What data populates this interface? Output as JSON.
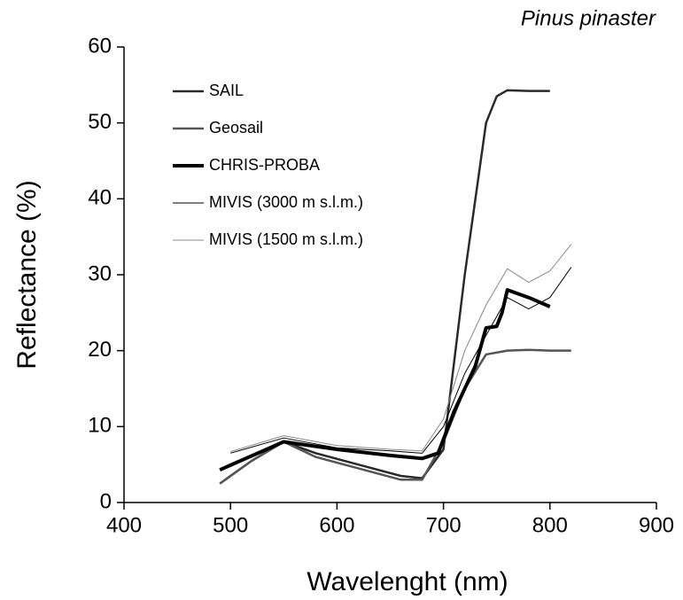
{
  "chart_data": {
    "type": "line",
    "title": "Pinus pinaster",
    "x_label": "Wavelenght (nm)",
    "y_label": "Reflectance (%)",
    "xlim": [
      400,
      900
    ],
    "xticks": [
      400,
      500,
      600,
      700,
      800,
      900
    ],
    "ylim": [
      0,
      60
    ],
    "yticks": [
      0,
      10,
      20,
      30,
      40,
      50,
      60
    ],
    "grid": false,
    "series": [
      {
        "name": "SAIL",
        "color": "#2a2a2a",
        "width": 2.5,
        "x": [
          490,
          520,
          550,
          580,
          620,
          660,
          680,
          700,
          720,
          740,
          750,
          760,
          780,
          800
        ],
        "values": [
          2.5,
          5.5,
          8,
          6.5,
          5,
          3.5,
          3.2,
          7,
          30,
          50,
          53.5,
          54.3,
          54.2,
          54.2
        ]
      },
      {
        "name": "Geosail",
        "color": "#555555",
        "width": 2.5,
        "x": [
          490,
          520,
          550,
          580,
          620,
          660,
          680,
          700,
          720,
          740,
          760,
          780,
          800,
          820
        ],
        "values": [
          2.5,
          5.5,
          8,
          6,
          4.5,
          3,
          3,
          8,
          15,
          19.5,
          20,
          20.1,
          20,
          20
        ]
      },
      {
        "name": "CHRIS-PROBA",
        "color": "#000000",
        "width": 4,
        "x": [
          490,
          550,
          600,
          650,
          680,
          695,
          710,
          730,
          740,
          750,
          755,
          760,
          780,
          800
        ],
        "values": [
          4.3,
          8,
          7,
          6.2,
          5.8,
          6.5,
          12,
          18,
          23,
          23.2,
          25,
          28,
          27,
          25.8
        ]
      },
      {
        "name": "MIVIS (3000 m s.l.m.)",
        "color": "#000000",
        "width": 1,
        "x": [
          500,
          550,
          600,
          650,
          680,
          700,
          720,
          740,
          760,
          780,
          800,
          820
        ],
        "values": [
          6.5,
          8.5,
          7.2,
          6.8,
          6.5,
          10,
          17,
          22,
          27,
          25.5,
          27,
          31
        ]
      },
      {
        "name": "MIVIS (1500 m s.l.m.)",
        "color": "#888888",
        "width": 1,
        "x": [
          500,
          550,
          600,
          650,
          680,
          700,
          720,
          740,
          760,
          780,
          800,
          820
        ],
        "values": [
          6.7,
          8.8,
          7.5,
          7,
          6.8,
          11,
          20,
          26,
          30.8,
          29,
          30.5,
          34
        ]
      }
    ]
  }
}
